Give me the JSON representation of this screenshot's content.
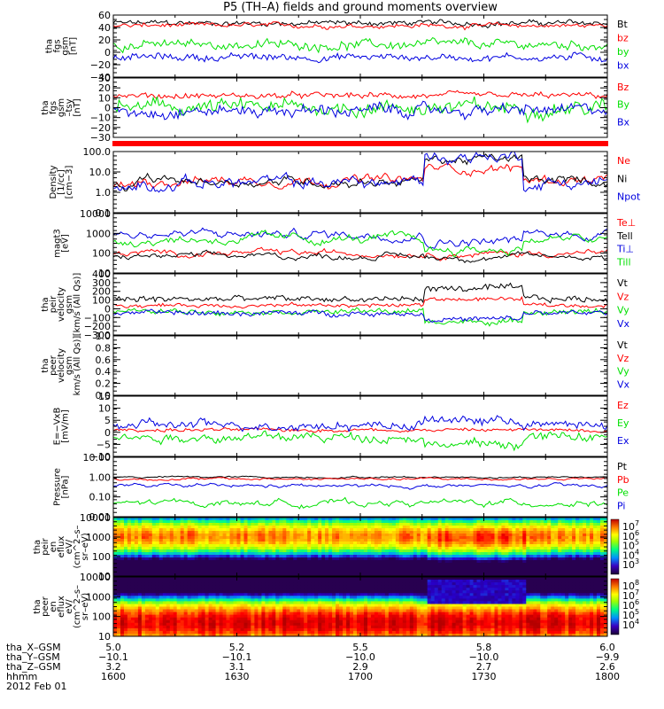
{
  "title": "P5 (TH–A) fields and ground moments overview",
  "chart_data": [
    {
      "type": "line",
      "id": "fgs_gsm",
      "ylabel": [
        "tha",
        "fgs",
        "gsm",
        "[nT]"
      ],
      "ylim": [
        -40,
        60
      ],
      "yscale": "linear",
      "ticks": [
        "60",
        "40",
        "20",
        "0",
        "−20",
        "−40"
      ],
      "tick_values": [
        60,
        40,
        20,
        0,
        -20,
        -40
      ],
      "legend": [
        {
          "name": "Bt",
          "color": "#000000",
          "level": 47,
          "noise": 6
        },
        {
          "name": "bz",
          "color": "#ff0000",
          "level": 43,
          "noise": 5
        },
        {
          "name": "by",
          "color": "#00e000",
          "level": 12,
          "noise": 10
        },
        {
          "name": "bx",
          "color": "#0000e0",
          "level": -8,
          "noise": 8
        }
      ]
    },
    {
      "type": "line",
      "id": "fgs_gse",
      "ylabel": [
        "tha",
        "fgs",
        "gsm",
        "–tsy",
        "[nT]"
      ],
      "ylim": [
        -30,
        30
      ],
      "yscale": "linear",
      "ticks": [
        "30",
        "20",
        "10",
        "0",
        "−10",
        "−20",
        "−30"
      ],
      "tick_values": [
        30,
        20,
        10,
        0,
        -10,
        -20,
        -30
      ],
      "legend": [
        {
          "name": "Bz",
          "color": "#ff0000",
          "level": 12,
          "noise": 4
        },
        {
          "name": "By",
          "color": "#00e000",
          "level": 0,
          "noise": 10
        },
        {
          "name": "Bx",
          "color": "#0000e0",
          "level": -3,
          "noise": 8
        }
      ]
    },
    {
      "type": "line",
      "id": "density",
      "ylabel": [
        "Density",
        "[1/cc]",
        "[cm−3]"
      ],
      "ylim": [
        0.1,
        100
      ],
      "yscale": "log",
      "ticks": [
        "100.0",
        "10.0",
        "1.0",
        "0.1"
      ],
      "tick_values": [
        100,
        10,
        1,
        0.1
      ],
      "legend": [
        {
          "name": "Ne",
          "color": "#ff0000",
          "level": 4,
          "noise": 0.15
        },
        {
          "name": "Ni",
          "color": "#000000",
          "level": 3.5,
          "noise": 0.15
        },
        {
          "name": "Npot",
          "color": "#0000e0",
          "level": 3,
          "noise": 0.2
        }
      ]
    },
    {
      "type": "line",
      "id": "temperature",
      "ylabel": [
        "magt3",
        "[eV]"
      ],
      "ylim": [
        10,
        10000
      ],
      "yscale": "log",
      "ticks": [
        "10000",
        "1000",
        "100",
        "10"
      ],
      "tick_values": [
        10000,
        1000,
        100,
        10
      ],
      "legend": [
        {
          "name": "Te⊥",
          "color": "#ff0000",
          "level": 100,
          "noise": 0.1
        },
        {
          "name": "Tell",
          "color": "#000000",
          "level": 70,
          "noise": 0.1
        },
        {
          "name": "Ti⊥",
          "color": "#0000e0",
          "level": 900,
          "noise": 0.15
        },
        {
          "name": "Till",
          "color": "#00e000",
          "level": 500,
          "noise": 0.15
        }
      ]
    },
    {
      "type": "line",
      "id": "peir_velocity",
      "ylabel": [
        "tha",
        "peir",
        "velocity",
        "gsm",
        "[km/s (All Qs)]"
      ],
      "ylim": [
        -300,
        400
      ],
      "yscale": "linear",
      "ticks": [
        "400",
        "300",
        "200",
        "100",
        "0",
        "−100",
        "−200",
        "−300"
      ],
      "tick_values": [
        400,
        300,
        200,
        100,
        0,
        -100,
        -200,
        -300
      ],
      "legend": [
        {
          "name": "Vt",
          "color": "#000000",
          "level": 110,
          "noise": 50
        },
        {
          "name": "Vz",
          "color": "#ff0000",
          "level": 40,
          "noise": 30
        },
        {
          "name": "Vy",
          "color": "#00e000",
          "level": -30,
          "noise": 40
        },
        {
          "name": "Vx",
          "color": "#0000e0",
          "level": -50,
          "noise": 40
        }
      ]
    },
    {
      "type": "line",
      "id": "peer_velocity",
      "ylabel": [
        "tha",
        "peer",
        "velocity",
        "gsm",
        "km/s (All Qs)]"
      ],
      "ylim": [
        0,
        1
      ],
      "yscale": "linear",
      "ticks": [
        "1.0",
        "0.8",
        "0.6",
        "0.4",
        "0.2",
        "0.0"
      ],
      "tick_values": [
        1,
        0.8,
        0.6,
        0.4,
        0.2,
        0
      ],
      "legend": [
        {
          "name": "Vt",
          "color": "#000000"
        },
        {
          "name": "Vz",
          "color": "#ff0000"
        },
        {
          "name": "Vy",
          "color": "#00e000"
        },
        {
          "name": "Vx",
          "color": "#0000e0"
        }
      ]
    },
    {
      "type": "line",
      "id": "efield",
      "ylabel": [
        "E=−VxB",
        "[mV/m]"
      ],
      "ylim": [
        -10,
        15
      ],
      "yscale": "linear",
      "ticks": [
        "15",
        "10",
        "5",
        "0",
        "−5",
        "−10"
      ],
      "tick_values": [
        15,
        10,
        5,
        0,
        -5,
        -10
      ],
      "legend": [
        {
          "name": "Ez",
          "color": "#ff0000",
          "level": 1,
          "noise": 1
        },
        {
          "name": "Ey",
          "color": "#00e000",
          "level": -2,
          "noise": 2.5
        },
        {
          "name": "Ex",
          "color": "#0000e0",
          "level": 3,
          "noise": 2.5
        }
      ]
    },
    {
      "type": "line",
      "id": "pressure",
      "ylabel": [
        "Pressure",
        "[nPa]"
      ],
      "ylim": [
        0.01,
        10
      ],
      "yscale": "log",
      "ticks": [
        "10.00",
        "1.00",
        "0.10",
        "0.01"
      ],
      "tick_values": [
        10,
        1,
        0.1,
        0.01
      ],
      "legend": [
        {
          "name": "Pt",
          "color": "#000000",
          "level": 1.0,
          "noise": 0.03
        },
        {
          "name": "Pb",
          "color": "#ff0000",
          "level": 0.8,
          "noise": 0.04
        },
        {
          "name": "Pe",
          "color": "#00e000",
          "level": 0.05,
          "noise": 0.1
        },
        {
          "name": "Pi",
          "color": "#0000e0",
          "level": 0.35,
          "noise": 0.06
        }
      ]
    },
    {
      "type": "heatmap",
      "id": "peir_spec",
      "ylabel": [
        "tha",
        "peir",
        "en",
        "eflux",
        "eV/",
        "(cm^2–s–",
        "sr–eV)"
      ],
      "ylim": [
        10,
        10000
      ],
      "yscale": "log",
      "ticks": [
        "10000",
        "1000",
        "100",
        "10"
      ],
      "tick_values": [
        10000,
        1000,
        100,
        10
      ],
      "colorbar": {
        "labels": [
          "10",
          "10",
          "10",
          "10",
          "10"
        ],
        "exponents": [
          "7",
          "6",
          "5",
          "4",
          "3"
        ]
      }
    },
    {
      "type": "heatmap",
      "id": "peer_spec",
      "ylabel": [
        "tha",
        "peer",
        "en",
        "eflux",
        "eV/",
        "(cm^2–s–",
        "sr–eV)"
      ],
      "ylim": [
        10,
        10000
      ],
      "yscale": "log",
      "ticks": [
        "10000",
        "1000",
        "100",
        "10"
      ],
      "tick_values": [
        10000,
        1000,
        100,
        10
      ],
      "colorbar": {
        "labels": [
          "10",
          "10",
          "10",
          "10",
          "10"
        ],
        "exponents": [
          "8",
          "7",
          "6",
          "5",
          "4"
        ]
      }
    }
  ],
  "x_axis": {
    "rows": [
      {
        "label": "tha_X–GSM",
        "values": [
          "5.0",
          "5.2",
          "5.5",
          "5.8",
          "6.0"
        ]
      },
      {
        "label": "tha_Y–GSM",
        "values": [
          "−10.1",
          "−10.1",
          "−10.0",
          "−10.0",
          "−9.9"
        ]
      },
      {
        "label": "tha_Z–GSM",
        "values": [
          "3.2",
          "3.1",
          "2.9",
          "2.7",
          "2.6"
        ]
      },
      {
        "label": "hhmm",
        "values": [
          "1600",
          "1630",
          "1700",
          "1730",
          "1800"
        ]
      }
    ],
    "date": "2012 Feb 01",
    "time_range": [
      1600,
      1800
    ]
  }
}
